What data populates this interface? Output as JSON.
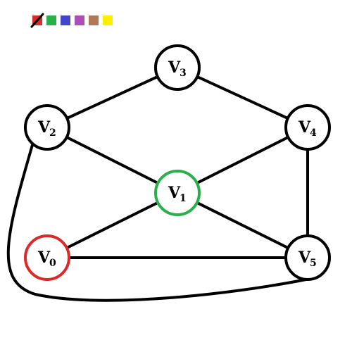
{
  "palette": {
    "colors": [
      {
        "name": "red",
        "hex": "#d92b2b",
        "crossed": true
      },
      {
        "name": "green",
        "hex": "#2ab04a",
        "crossed": false
      },
      {
        "name": "blue",
        "hex": "#3f47c8",
        "crossed": false
      },
      {
        "name": "purple",
        "hex": "#a94fb7",
        "crossed": false
      },
      {
        "name": "brown",
        "hex": "#b07a5a",
        "crossed": false
      },
      {
        "name": "yellow",
        "hex": "#ffee00",
        "crossed": false
      }
    ]
  },
  "graph": {
    "nodes": [
      {
        "id": "v0",
        "letter": "V",
        "sub": "0",
        "stroke": "#d92b2b"
      },
      {
        "id": "v1",
        "letter": "V",
        "sub": "1",
        "stroke": "#2ab04a"
      },
      {
        "id": "v2",
        "letter": "V",
        "sub": "2",
        "stroke": "#000000"
      },
      {
        "id": "v3",
        "letter": "V",
        "sub": "3",
        "stroke": "#000000"
      },
      {
        "id": "v4",
        "letter": "V",
        "sub": "4",
        "stroke": "#000000"
      },
      {
        "id": "v5",
        "letter": "V",
        "sub": "5",
        "stroke": "#000000"
      }
    ],
    "edges": [
      {
        "from": "v2",
        "to": "v3"
      },
      {
        "from": "v3",
        "to": "v4"
      },
      {
        "from": "v2",
        "to": "v1"
      },
      {
        "from": "v4",
        "to": "v1"
      },
      {
        "from": "v4",
        "to": "v5"
      },
      {
        "from": "v0",
        "to": "v1"
      },
      {
        "from": "v1",
        "to": "v5"
      },
      {
        "from": "v0",
        "to": "v5"
      },
      {
        "from": "v2",
        "to": "v5"
      }
    ]
  }
}
